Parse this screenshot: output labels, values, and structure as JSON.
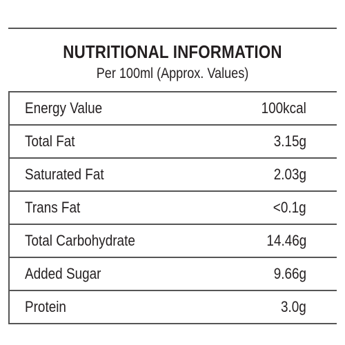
{
  "header": {
    "title": "NUTRITIONAL INFORMATION",
    "subtitle": "Per 100ml (Approx. Values)"
  },
  "table": {
    "rows": [
      [
        "Energy Value",
        "100kcal"
      ],
      [
        "Total Fat",
        "3.15g"
      ],
      [
        "Saturated Fat",
        "2.03g"
      ],
      [
        "Trans Fat",
        "<0.1g"
      ],
      [
        "Total Carbohydrate",
        "14.46g"
      ],
      [
        "Added Sugar",
        "9.66g"
      ],
      [
        "Protein",
        "3.0g"
      ]
    ]
  }
}
